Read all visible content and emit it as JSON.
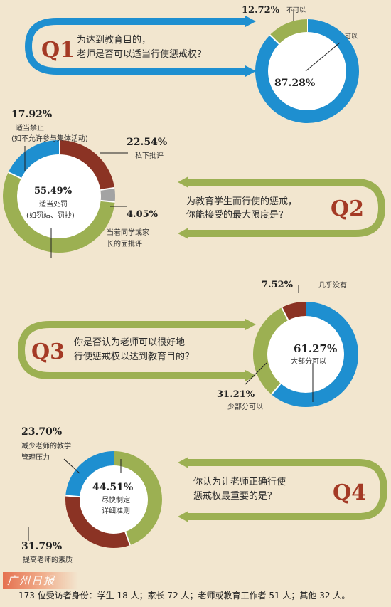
{
  "colors": {
    "blue": "#1e8fd0",
    "olive": "#9cb052",
    "brown": "#8b3324",
    "gray": "#a3a3a3",
    "red": "#a43a25"
  },
  "chart_data": [
    {
      "type": "pie",
      "id": "Q1",
      "question_label": "Q1",
      "question": [
        "为达到教育目的，",
        "老师是否可以适当行使惩戒权？"
      ],
      "slices": [
        {
          "label": "可以",
          "value": 87.28,
          "value_label": "87.28%",
          "color": "#1e8fd0"
        },
        {
          "label": "不可以",
          "value": 12.72,
          "value_label": "12.72%",
          "color": "#9cb052"
        }
      ]
    },
    {
      "type": "pie",
      "id": "Q2",
      "question_label": "Q2",
      "question": [
        "为教育学生而行使的惩戒，",
        "你能接受的最大限度是？"
      ],
      "slices": [
        {
          "label": "适当处罚（如罚站、罚抄）",
          "label_lines": [
            "适当处罚",
            "(如罚站、罚抄)"
          ],
          "value": 55.49,
          "value_label": "55.49%",
          "color": "#9cb052"
        },
        {
          "label": "私下批评",
          "label_lines": [
            "私下批评"
          ],
          "value": 22.54,
          "value_label": "22.54%",
          "color": "#8b3324"
        },
        {
          "label": "当着同学或家长的面批评",
          "label_lines": [
            "当着同学或家",
            "长的面批评"
          ],
          "value": 4.05,
          "value_label": "4.05%",
          "color": "#a3a3a3"
        },
        {
          "label": "适当禁止（如不允许参与集体活动）",
          "label_lines": [
            "适当禁止",
            "(如不允许参与集体活动)"
          ],
          "value": 17.92,
          "value_label": "17.92%",
          "color": "#1e8fd0"
        }
      ]
    },
    {
      "type": "pie",
      "id": "Q3",
      "question_label": "Q3",
      "question": [
        "你是否认为老师可以很好地",
        "行使惩戒权以达到教育目的？"
      ],
      "slices": [
        {
          "label": "大部分可以",
          "value": 61.27,
          "value_label": "61.27%",
          "color": "#1e8fd0"
        },
        {
          "label": "少部分可以",
          "value": 31.21,
          "value_label": "31.21%",
          "color": "#9cb052"
        },
        {
          "label": "几乎没有",
          "value": 7.52,
          "value_label": "7.52%",
          "color": "#8b3324"
        }
      ]
    },
    {
      "type": "pie",
      "id": "Q4",
      "question_label": "Q4",
      "question": [
        "你认为让老师正确行使",
        "惩戒权最重要的是？"
      ],
      "slices": [
        {
          "label": "尽快制定详细准则",
          "label_lines": [
            "尽快制定",
            "详细准则"
          ],
          "value": 44.51,
          "value_label": "44.51%",
          "color": "#9cb052"
        },
        {
          "label": "提高老师的素质",
          "label_lines": [
            "提高老师的素质"
          ],
          "value": 31.79,
          "value_label": "31.79%",
          "color": "#8b3324"
        },
        {
          "label": "减少老师的教学管理压力",
          "label_lines": [
            "减少老师的教学",
            "管理压力"
          ],
          "value": 23.7,
          "value_label": "23.70%",
          "color": "#1e8fd0"
        }
      ]
    }
  ],
  "footer": {
    "logo": "广州日报",
    "text": "173 位受访者身份：学生 18 人；家长 72 人；老师或教育工作者 51 人；其他 32 人。"
  }
}
